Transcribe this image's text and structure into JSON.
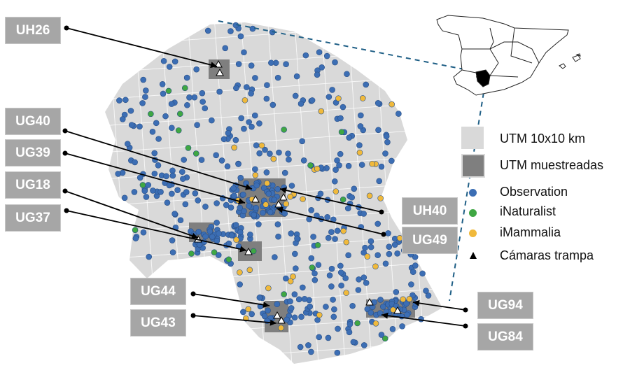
{
  "labels": [
    {
      "id": "UH26",
      "box": "l1"
    },
    {
      "id": "UG40",
      "box": "l2"
    },
    {
      "id": "UG39",
      "box": "l3"
    },
    {
      "id": "UG18",
      "box": "l4"
    },
    {
      "id": "UG37",
      "box": "l5"
    },
    {
      "id": "UH40",
      "box": "l6"
    },
    {
      "id": "UG49",
      "box": "l7"
    },
    {
      "id": "UG44",
      "box": "l8"
    },
    {
      "id": "UG43",
      "box": "l9"
    },
    {
      "id": "UG94",
      "box": "l10"
    },
    {
      "id": "UG84",
      "box": "l11"
    }
  ],
  "legend": {
    "utm_grid": "UTM 10x10 km",
    "utm_sampled": "UTM muestreadas",
    "observation": "Observation",
    "inaturalist": "iNaturalist",
    "imammalia": "iMammalia",
    "camera_traps": "Cámaras trampa"
  },
  "colors": {
    "observation": "#3c6eb4",
    "inaturalist": "#3fa743",
    "imammalia": "#f0b93b",
    "grid_cell": "#d9d9d9",
    "sampled_cell": "#7f7f7f",
    "label_box": "#a6a6a6",
    "connector": "#1f5f86"
  }
}
